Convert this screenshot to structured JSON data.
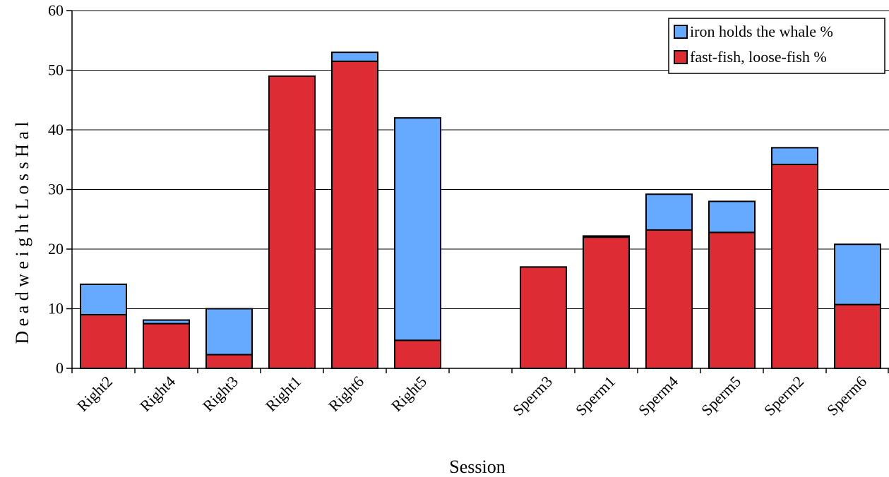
{
  "chart_data": {
    "type": "bar",
    "stacked": true,
    "categories": [
      "Right2",
      "Right4",
      "Right3",
      "Right1",
      "Right6",
      "Right5",
      "",
      "Sperm3",
      "Sperm1",
      "Sperm4",
      "Sperm5",
      "Sperm2",
      "Sperm6"
    ],
    "series": [
      {
        "name": "fast-fish, loose-fish %",
        "color": "#dd2c34",
        "values": [
          9,
          7.5,
          2.3,
          49,
          51.5,
          4.7,
          null,
          17,
          22,
          23.2,
          22.8,
          34.2,
          10.7
        ]
      },
      {
        "name": "iron holds the whale %",
        "color": "#66aaff",
        "values": [
          5.1,
          0.6,
          7.7,
          0,
          1.5,
          37.3,
          null,
          0,
          0.2,
          6,
          5.2,
          2.8,
          10.1
        ]
      }
    ],
    "title": "",
    "xlabel": "Session",
    "ylabel": "D e a d w e i g h t   L o s s   H a l",
    "ylim": [
      0,
      60
    ],
    "yticks": [
      0,
      10,
      20,
      30,
      40,
      50,
      60
    ],
    "grid": true,
    "legend_position": "top-right"
  }
}
